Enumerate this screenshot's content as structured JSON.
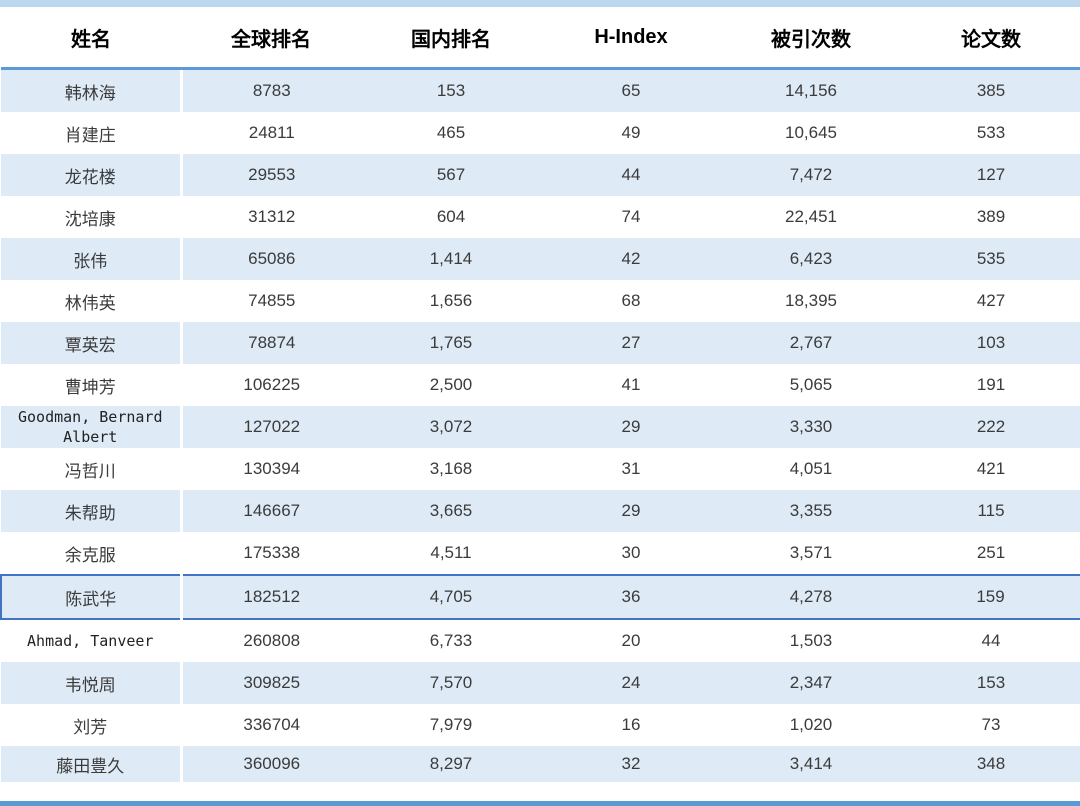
{
  "table": {
    "columns": [
      "姓名",
      "全球排名",
      "国内排名",
      "H-Index",
      "被引次数",
      "论文数"
    ],
    "column_keys": [
      "name",
      "global-rank",
      "domestic-rank",
      "h-index",
      "citations",
      "papers"
    ],
    "selected_row_index": 12,
    "rows": [
      [
        "韩林海",
        "8783",
        "153",
        "65",
        "14,156",
        "385"
      ],
      [
        "肖建庄",
        "24811",
        "465",
        "49",
        "10,645",
        "533"
      ],
      [
        "龙花楼",
        "29553",
        "567",
        "44",
        "7,472",
        "127"
      ],
      [
        "沈培康",
        "31312",
        "604",
        "74",
        "22,451",
        "389"
      ],
      [
        "张伟",
        "65086",
        "1,414",
        "42",
        "6,423",
        "535"
      ],
      [
        "林伟英",
        "74855",
        "1,656",
        "68",
        "18,395",
        "427"
      ],
      [
        "覃英宏",
        "78874",
        "1,765",
        "27",
        "2,767",
        "103"
      ],
      [
        "曹坤芳",
        "106225",
        "2,500",
        "41",
        "5,065",
        "191"
      ],
      [
        "Goodman, Bernard Albert",
        "127022",
        "3,072",
        "29",
        "3,330",
        "222"
      ],
      [
        "冯哲川",
        "130394",
        "3,168",
        "31",
        "4,051",
        "421"
      ],
      [
        "朱帮助",
        "146667",
        "3,665",
        "29",
        "3,355",
        "115"
      ],
      [
        "余克服",
        "175338",
        "4,511",
        "30",
        "3,571",
        "251"
      ],
      [
        "陈武华",
        "182512",
        "4,705",
        "36",
        "4,278",
        "159"
      ],
      [
        "Ahmad, Tanveer",
        "260808",
        "6,733",
        "20",
        "1,503",
        "44"
      ],
      [
        "韦悦周",
        "309825",
        "7,570",
        "24",
        "2,347",
        "153"
      ],
      [
        "刘芳",
        "336704",
        "7,979",
        "16",
        "1,020",
        "73"
      ],
      [
        "藤田豊久",
        "360096",
        "8,297",
        "32",
        "3,414",
        "348"
      ]
    ]
  },
  "colors": {
    "top_bar": "#BDD7EE",
    "header_rule": "#5B9BD5",
    "row_shade": "#DEEAF6",
    "selected_border": "#4472C4",
    "bottom_bar": "#5B9BD5"
  }
}
